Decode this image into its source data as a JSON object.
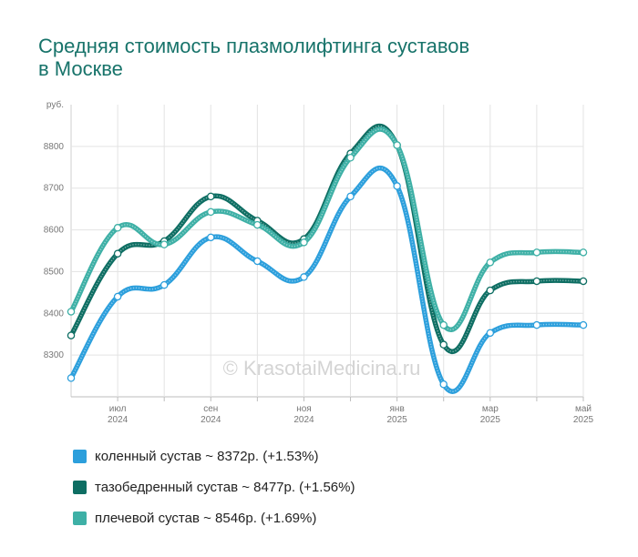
{
  "title_lines": [
    "Средняя стоимость плазмолифтинга суставов",
    "в Москве"
  ],
  "watermark": "© KrasotaiMedicina.ru",
  "chart_data": {
    "type": "line",
    "y_unit_label": "руб.",
    "ylim": [
      8200,
      8900
    ],
    "y_ticks": [
      8300,
      8400,
      8500,
      8600,
      8700,
      8800
    ],
    "x_ticks": [
      {
        "month": "июл",
        "year": "2024",
        "at": 1
      },
      {
        "month": "сен",
        "year": "2024",
        "at": 3
      },
      {
        "month": "ноя",
        "year": "2024",
        "at": 5
      },
      {
        "month": "янв",
        "year": "2025",
        "at": 7
      },
      {
        "month": "мар",
        "year": "2025",
        "at": 9
      },
      {
        "month": "май",
        "year": "2025",
        "at": 11
      }
    ],
    "grid": true,
    "legend_position": "bottom",
    "series": [
      {
        "name": "коленный сустав",
        "color": "#2c9fdc",
        "values": [
          8245,
          8440,
          8468,
          8582,
          8525,
          8487,
          8680,
          8705,
          8230,
          8353,
          8372,
          8372
        ]
      },
      {
        "name": "тазобедренный сустав",
        "color": "#0e6e63",
        "values": [
          8347,
          8543,
          8573,
          8680,
          8622,
          8578,
          8783,
          8803,
          8325,
          8455,
          8477,
          8477
        ]
      },
      {
        "name": "плечевой сустав",
        "color": "#3eb0a6",
        "values": [
          8404,
          8605,
          8565,
          8643,
          8612,
          8570,
          8773,
          8803,
          8372,
          8522,
          8546,
          8546
        ]
      }
    ]
  },
  "legend": [
    {
      "label": "коленный сустав ~ 8372р. (+1.53%)",
      "color": "#2c9fdc"
    },
    {
      "label": "тазобедренный сустав ~ 8477р. (+1.56%)",
      "color": "#0e6e63"
    },
    {
      "label": "плечевой сустав ~ 8546р. (+1.69%)",
      "color": "#3eb0a6"
    }
  ]
}
